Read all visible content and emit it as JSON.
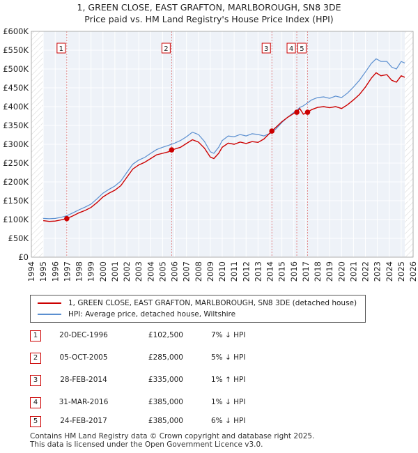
{
  "title_line1": "1, GREEN CLOSE, EAST GRAFTON, MARLBOROUGH, SN8 3DE",
  "title_line2": "Price paid vs. HM Land Registry's House Price Index (HPI)",
  "chart_data": {
    "type": "line",
    "ylim": [
      0,
      600000
    ],
    "xlim": [
      1994,
      2026
    ],
    "yticks": [
      0,
      50000,
      100000,
      150000,
      200000,
      250000,
      300000,
      350000,
      400000,
      450000,
      500000,
      550000,
      600000
    ],
    "ytick_labels": [
      "£0",
      "£50K",
      "£100K",
      "£150K",
      "£200K",
      "£250K",
      "£300K",
      "£350K",
      "£400K",
      "£450K",
      "£500K",
      "£550K",
      "£600K"
    ],
    "xticks": [
      1994,
      1995,
      1996,
      1997,
      1998,
      1999,
      2000,
      2001,
      2002,
      2003,
      2004,
      2005,
      2006,
      2007,
      2008,
      2009,
      2010,
      2011,
      2012,
      2013,
      2014,
      2015,
      2016,
      2017,
      2018,
      2019,
      2020,
      2021,
      2022,
      2023,
      2024,
      2025,
      2026
    ],
    "xtick_labels": [
      "1994",
      "1995",
      "1996",
      "1997",
      "1998",
      "1999",
      "2000",
      "2001",
      "2002",
      "2003",
      "2004",
      "2005",
      "2006",
      "2007",
      "2008",
      "2009",
      "2010",
      "2011",
      "2012",
      "2013",
      "2014",
      "2015",
      "2016",
      "2017",
      "2018",
      "2019",
      "2020",
      "2021",
      "2022",
      "2023",
      "2024",
      "2025",
      "2026"
    ],
    "data_start": 1995.0,
    "data_end": 2025.3,
    "series": [
      {
        "name": "1, GREEN CLOSE, EAST GRAFTON, MARLBOROUGH, SN8 3DE (detached house)",
        "color": "#cc0000",
        "points": [
          [
            1995.0,
            97000
          ],
          [
            1995.5,
            95000
          ],
          [
            1996.0,
            96000
          ],
          [
            1996.5,
            99000
          ],
          [
            1996.97,
            102500
          ],
          [
            1997.5,
            110000
          ],
          [
            1998.0,
            118000
          ],
          [
            1998.5,
            124000
          ],
          [
            1999.0,
            132000
          ],
          [
            1999.5,
            145000
          ],
          [
            2000.0,
            160000
          ],
          [
            2000.5,
            170000
          ],
          [
            2001.0,
            178000
          ],
          [
            2001.5,
            190000
          ],
          [
            2002.0,
            212000
          ],
          [
            2002.5,
            234000
          ],
          [
            2003.0,
            245000
          ],
          [
            2003.5,
            252000
          ],
          [
            2004.0,
            262000
          ],
          [
            2004.5,
            272000
          ],
          [
            2005.0,
            276000
          ],
          [
            2005.5,
            280000
          ],
          [
            2005.76,
            285000
          ],
          [
            2006.0,
            287000
          ],
          [
            2006.5,
            292000
          ],
          [
            2007.0,
            302000
          ],
          [
            2007.5,
            312000
          ],
          [
            2008.0,
            306000
          ],
          [
            2008.5,
            290000
          ],
          [
            2009.0,
            266000
          ],
          [
            2009.3,
            262000
          ],
          [
            2009.7,
            276000
          ],
          [
            2010.0,
            292000
          ],
          [
            2010.5,
            303000
          ],
          [
            2011.0,
            300000
          ],
          [
            2011.5,
            306000
          ],
          [
            2012.0,
            302000
          ],
          [
            2012.5,
            307000
          ],
          [
            2013.0,
            305000
          ],
          [
            2013.5,
            314000
          ],
          [
            2014.16,
            335000
          ],
          [
            2014.5,
            345000
          ],
          [
            2015.0,
            360000
          ],
          [
            2015.5,
            372000
          ],
          [
            2016.0,
            382000
          ],
          [
            2016.25,
            385000
          ],
          [
            2016.5,
            395000
          ],
          [
            2016.8,
            380000
          ],
          [
            2017.15,
            385000
          ],
          [
            2017.5,
            392000
          ],
          [
            2018.0,
            398000
          ],
          [
            2018.5,
            400000
          ],
          [
            2019.0,
            397000
          ],
          [
            2019.5,
            400000
          ],
          [
            2020.0,
            395000
          ],
          [
            2020.5,
            405000
          ],
          [
            2021.0,
            418000
          ],
          [
            2021.5,
            432000
          ],
          [
            2022.0,
            452000
          ],
          [
            2022.5,
            476000
          ],
          [
            2022.9,
            490000
          ],
          [
            2023.3,
            482000
          ],
          [
            2023.8,
            485000
          ],
          [
            2024.2,
            470000
          ],
          [
            2024.6,
            465000
          ],
          [
            2025.0,
            482000
          ],
          [
            2025.3,
            478000
          ]
        ]
      },
      {
        "name": "HPI: Average price, detached house, Wiltshire",
        "color": "#5b8fd0",
        "points": [
          [
            1995.0,
            103000
          ],
          [
            1995.5,
            102000
          ],
          [
            1996.0,
            103000
          ],
          [
            1996.5,
            106000
          ],
          [
            1996.97,
            110000
          ],
          [
            1997.5,
            118000
          ],
          [
            1998.0,
            126000
          ],
          [
            1998.5,
            133000
          ],
          [
            1999.0,
            141000
          ],
          [
            1999.5,
            155000
          ],
          [
            2000.0,
            170000
          ],
          [
            2000.5,
            180000
          ],
          [
            2001.0,
            189000
          ],
          [
            2001.5,
            202000
          ],
          [
            2002.0,
            225000
          ],
          [
            2002.5,
            247000
          ],
          [
            2003.0,
            258000
          ],
          [
            2003.5,
            265000
          ],
          [
            2004.0,
            276000
          ],
          [
            2004.5,
            286000
          ],
          [
            2005.0,
            292000
          ],
          [
            2005.5,
            297000
          ],
          [
            2005.76,
            300000
          ],
          [
            2006.0,
            303000
          ],
          [
            2006.5,
            310000
          ],
          [
            2007.0,
            320000
          ],
          [
            2007.5,
            332000
          ],
          [
            2008.0,
            326000
          ],
          [
            2008.5,
            308000
          ],
          [
            2009.0,
            280000
          ],
          [
            2009.3,
            276000
          ],
          [
            2009.7,
            292000
          ],
          [
            2010.0,
            310000
          ],
          [
            2010.5,
            322000
          ],
          [
            2011.0,
            320000
          ],
          [
            2011.5,
            326000
          ],
          [
            2012.0,
            322000
          ],
          [
            2012.5,
            328000
          ],
          [
            2013.0,
            326000
          ],
          [
            2013.5,
            322000
          ],
          [
            2014.16,
            331000
          ],
          [
            2014.5,
            341000
          ],
          [
            2015.0,
            358000
          ],
          [
            2015.5,
            372000
          ],
          [
            2016.0,
            385000
          ],
          [
            2016.25,
            390000
          ],
          [
            2016.5,
            398000
          ],
          [
            2016.8,
            402000
          ],
          [
            2017.15,
            410000
          ],
          [
            2017.5,
            418000
          ],
          [
            2018.0,
            424000
          ],
          [
            2018.5,
            426000
          ],
          [
            2019.0,
            422000
          ],
          [
            2019.5,
            428000
          ],
          [
            2020.0,
            424000
          ],
          [
            2020.5,
            436000
          ],
          [
            2021.0,
            452000
          ],
          [
            2021.5,
            470000
          ],
          [
            2022.0,
            492000
          ],
          [
            2022.5,
            515000
          ],
          [
            2022.9,
            527000
          ],
          [
            2023.3,
            520000
          ],
          [
            2023.8,
            520000
          ],
          [
            2024.2,
            505000
          ],
          [
            2024.6,
            500000
          ],
          [
            2025.0,
            520000
          ],
          [
            2025.3,
            516000
          ]
        ]
      }
    ],
    "sales": [
      {
        "label": "1",
        "date": "20-DEC-1996",
        "x": 1996.97,
        "price": 102500,
        "price_text": "£102,500",
        "hpi": "7% ↓ HPI"
      },
      {
        "label": "2",
        "date": "05-OCT-2005",
        "x": 2005.76,
        "price": 285000,
        "price_text": "£285,000",
        "hpi": "5% ↓ HPI"
      },
      {
        "label": "3",
        "date": "28-FEB-2014",
        "x": 2014.16,
        "price": 335000,
        "price_text": "£335,000",
        "hpi": "1% ↑ HPI"
      },
      {
        "label": "4",
        "date": "31-MAR-2016",
        "x": 2016.25,
        "price": 385000,
        "price_text": "£385,000",
        "hpi": "1% ↓ HPI"
      },
      {
        "label": "5",
        "date": "24-FEB-2017",
        "x": 2017.15,
        "price": 385000,
        "price_text": "£385,000",
        "hpi": "6% ↓ HPI"
      }
    ]
  },
  "legend": {
    "red_label": "1, GREEN CLOSE, EAST GRAFTON, MARLBOROUGH, SN8 3DE (detached house)",
    "blue_label": "HPI: Average price, detached house, Wiltshire",
    "red_color": "#cc0000",
    "blue_color": "#5b8fd0"
  },
  "footer": {
    "line1": "Contains HM Land Registry data © Crown copyright and database right 2025.",
    "line2": "This data is licensed under the Open Government Licence v3.0."
  }
}
